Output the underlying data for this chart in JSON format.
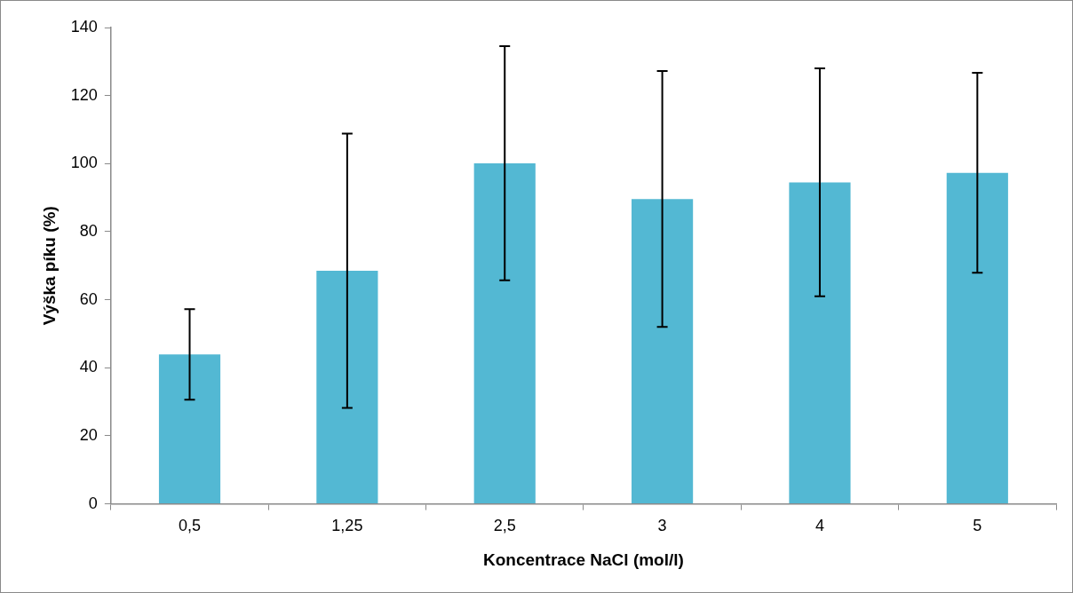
{
  "chart_data": {
    "type": "bar",
    "xlabel": "Koncentrace NaCl (mol/l)",
    "ylabel": "Výška píku (%)",
    "categories": [
      "0,5",
      "1,25",
      "2,5",
      "3",
      "4",
      "5"
    ],
    "values": [
      43.9,
      68.5,
      100.1,
      89.6,
      94.5,
      97.3
    ],
    "errors": [
      13.3,
      40.3,
      34.4,
      37.6,
      33.5,
      29.4
    ],
    "color": "#53b8d3",
    "ylim": [
      0,
      140
    ],
    "yticks": [
      0,
      20,
      40,
      60,
      80,
      100,
      120,
      140
    ],
    "grid": false
  }
}
